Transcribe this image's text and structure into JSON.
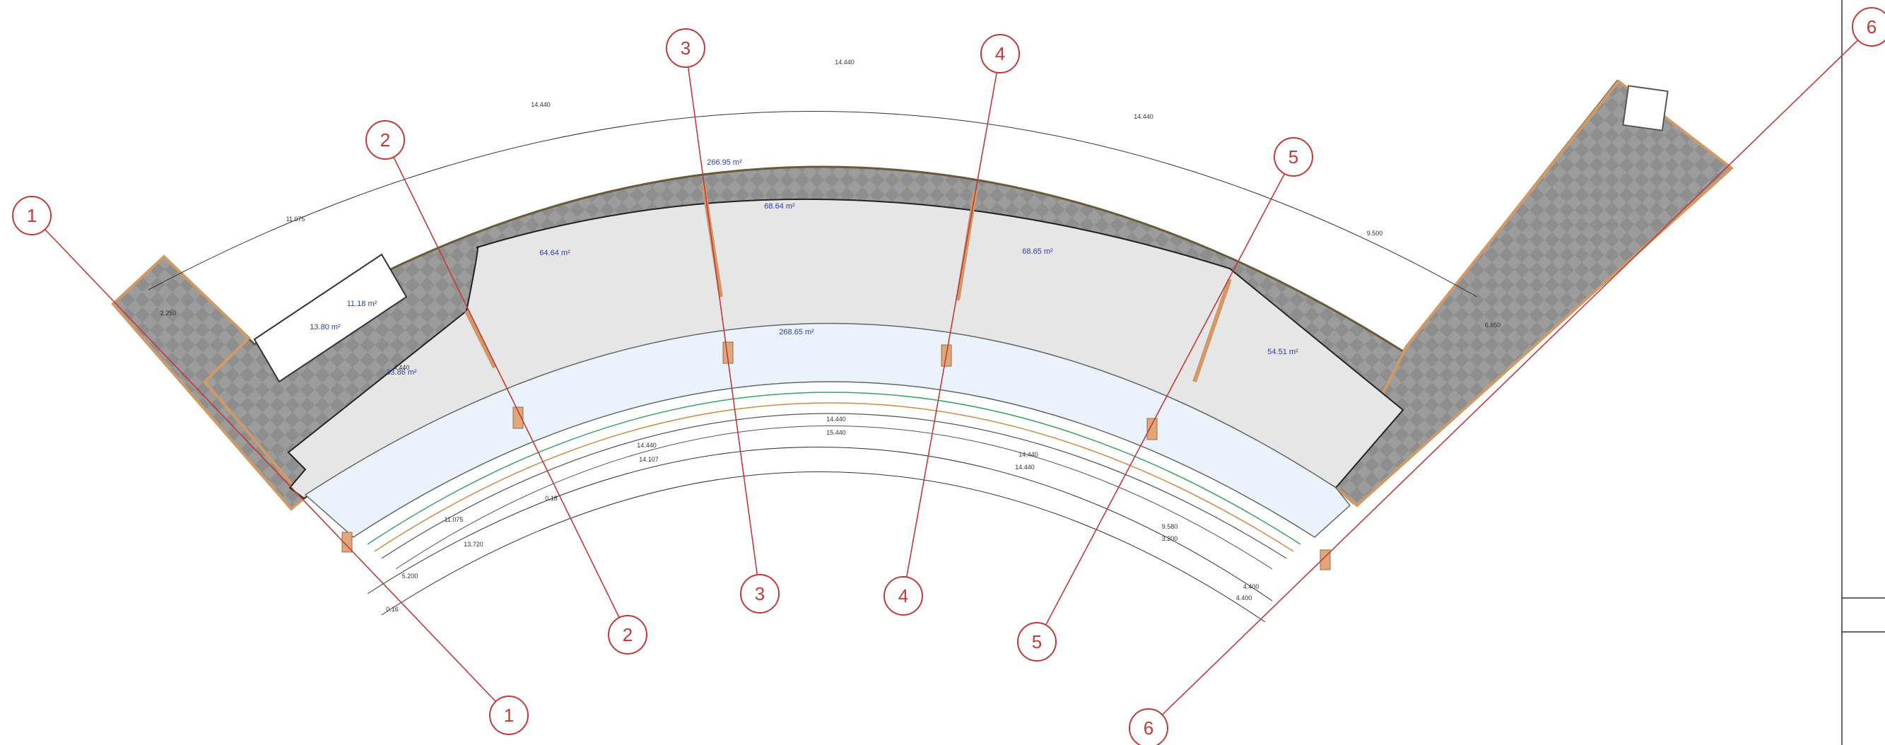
{
  "grid_axes": [
    {
      "label": "1"
    },
    {
      "label": "2"
    },
    {
      "label": "3"
    },
    {
      "label": "4"
    },
    {
      "label": "5"
    },
    {
      "label": "6"
    }
  ],
  "rooms": [
    {
      "id": "corridor-outer",
      "area": "266.95 m²"
    },
    {
      "id": "room-c",
      "area": "68.64 m²"
    },
    {
      "id": "room-b",
      "area": "64.64 m²"
    },
    {
      "id": "room-d",
      "area": "68.65 m²"
    },
    {
      "id": "room-office",
      "area": "54.51 m²"
    },
    {
      "id": "gallery",
      "area": "268.65 m²"
    },
    {
      "id": "room-a",
      "area": "33.86 m²"
    },
    {
      "id": "wc-1",
      "area": "11.18 m²"
    },
    {
      "id": "wc-2",
      "area": "13.80 m²"
    }
  ],
  "dimensions": {
    "outer": [
      "11.075",
      "14.440",
      "14.440",
      "14.440",
      "9.500"
    ],
    "inner_1": [
      "14.440",
      "15.440",
      "14.440"
    ],
    "inner_2": [
      "14.440",
      "14.440",
      "9.580"
    ],
    "inner_3": [
      "11.075",
      "13.720",
      "14.107"
    ],
    "small": [
      "2.250",
      "6.950",
      "4.400",
      "3.200",
      "4.400",
      "0.16",
      "0.18",
      "5.200",
      "4.440"
    ]
  },
  "colors": {
    "grid": "#c23a3a",
    "wall_hatch": "#8e8e8e",
    "room_fill": "#e6e6e6",
    "gallery_fill": "#eaf3fb",
    "area_text": "#2b3fb0",
    "column": "#e0a87a"
  }
}
